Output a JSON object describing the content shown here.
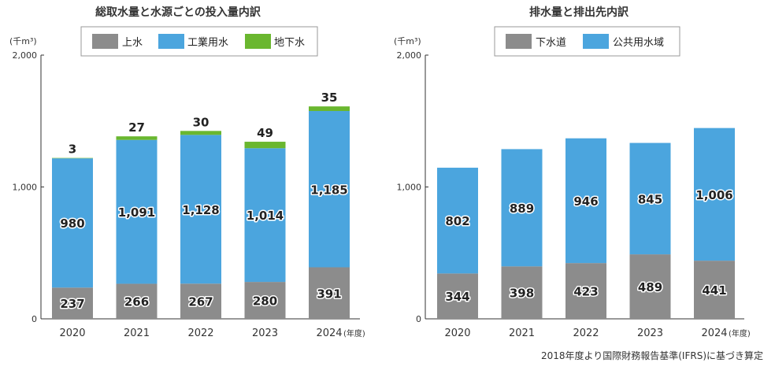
{
  "colors": {
    "gray": "#8c8c8c",
    "blue": "#4ba5de",
    "green": "#6ab72f"
  },
  "chart_data": [
    {
      "type": "bar",
      "stacked": true,
      "title": "総取水量と水源ごとの投入量内訳",
      "unit": "(千m³)",
      "categories": [
        "2020",
        "2021",
        "2022",
        "2023",
        "2024"
      ],
      "x_suffix": "(年度)",
      "ylim": [
        0,
        2000
      ],
      "yticks": [
        "0",
        "1,000",
        "2,000"
      ],
      "legend": "top",
      "series": [
        {
          "name": "上水",
          "color": "#8c8c8c",
          "values": [
            237,
            266,
            267,
            280,
            391
          ],
          "labels": [
            "237",
            "266",
            "267",
            "280",
            "391"
          ]
        },
        {
          "name": "工業用水",
          "color": "#4ba5de",
          "values": [
            980,
            1091,
            1128,
            1014,
            1185
          ],
          "labels": [
            "980",
            "1,091",
            "1,128",
            "1,014",
            "1,185"
          ]
        },
        {
          "name": "地下水",
          "color": "#6ab72f",
          "values": [
            3,
            27,
            30,
            49,
            35
          ],
          "labels": [
            "3",
            "27",
            "30",
            "49",
            "35"
          ]
        }
      ]
    },
    {
      "type": "bar",
      "stacked": true,
      "title": "排水量と排出先内訳",
      "unit": "(千m³)",
      "categories": [
        "2020",
        "2021",
        "2022",
        "2023",
        "2024"
      ],
      "x_suffix": "(年度)",
      "ylim": [
        0,
        2000
      ],
      "yticks": [
        "0",
        "1,000",
        "2,000"
      ],
      "legend": "top",
      "series": [
        {
          "name": "下水道",
          "color": "#8c8c8c",
          "values": [
            344,
            398,
            423,
            489,
            441
          ],
          "labels": [
            "344",
            "398",
            "423",
            "489",
            "441"
          ]
        },
        {
          "name": "公共用水域",
          "color": "#4ba5de",
          "values": [
            802,
            889,
            946,
            845,
            1006
          ],
          "labels": [
            "802",
            "889",
            "946",
            "845",
            "1,006"
          ]
        }
      ]
    }
  ],
  "note": "2018年度より国際財務報告基準(IFRS)に基づき算定"
}
